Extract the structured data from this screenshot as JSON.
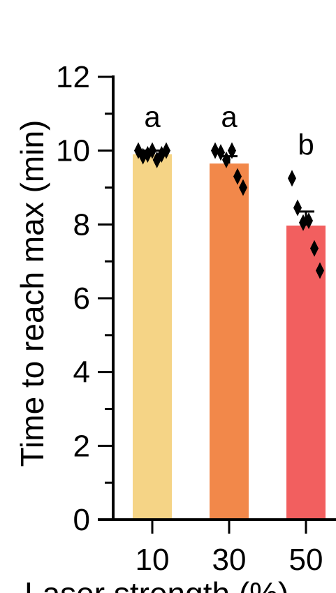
{
  "chart_data": {
    "type": "bar",
    "categories": [
      "10",
      "30",
      "50"
    ],
    "values": [
      9.9,
      9.65,
      7.97
    ],
    "error": [
      0.1,
      0.2,
      0.38
    ],
    "bar_colors": [
      "#F5D486",
      "#F2884A",
      "#F25F5F"
    ],
    "points": [
      [
        10.0,
        9.85,
        9.9,
        10.0,
        9.75,
        9.9,
        10.0
      ],
      [
        10.0,
        9.95,
        9.75,
        10.0,
        9.3,
        9.0
      ],
      [
        9.25,
        8.45,
        8.05,
        8.1,
        7.35,
        6.75
      ]
    ],
    "significance": [
      "a",
      "a",
      "b"
    ],
    "ylabel": "Time to reach max (min)",
    "xlabel": "Laser strength (%)",
    "ylim": [
      0,
      12
    ],
    "yticks": [
      "0",
      "2",
      "4",
      "6",
      "8",
      "10",
      "12"
    ],
    "grid": false,
    "legend": "none"
  }
}
